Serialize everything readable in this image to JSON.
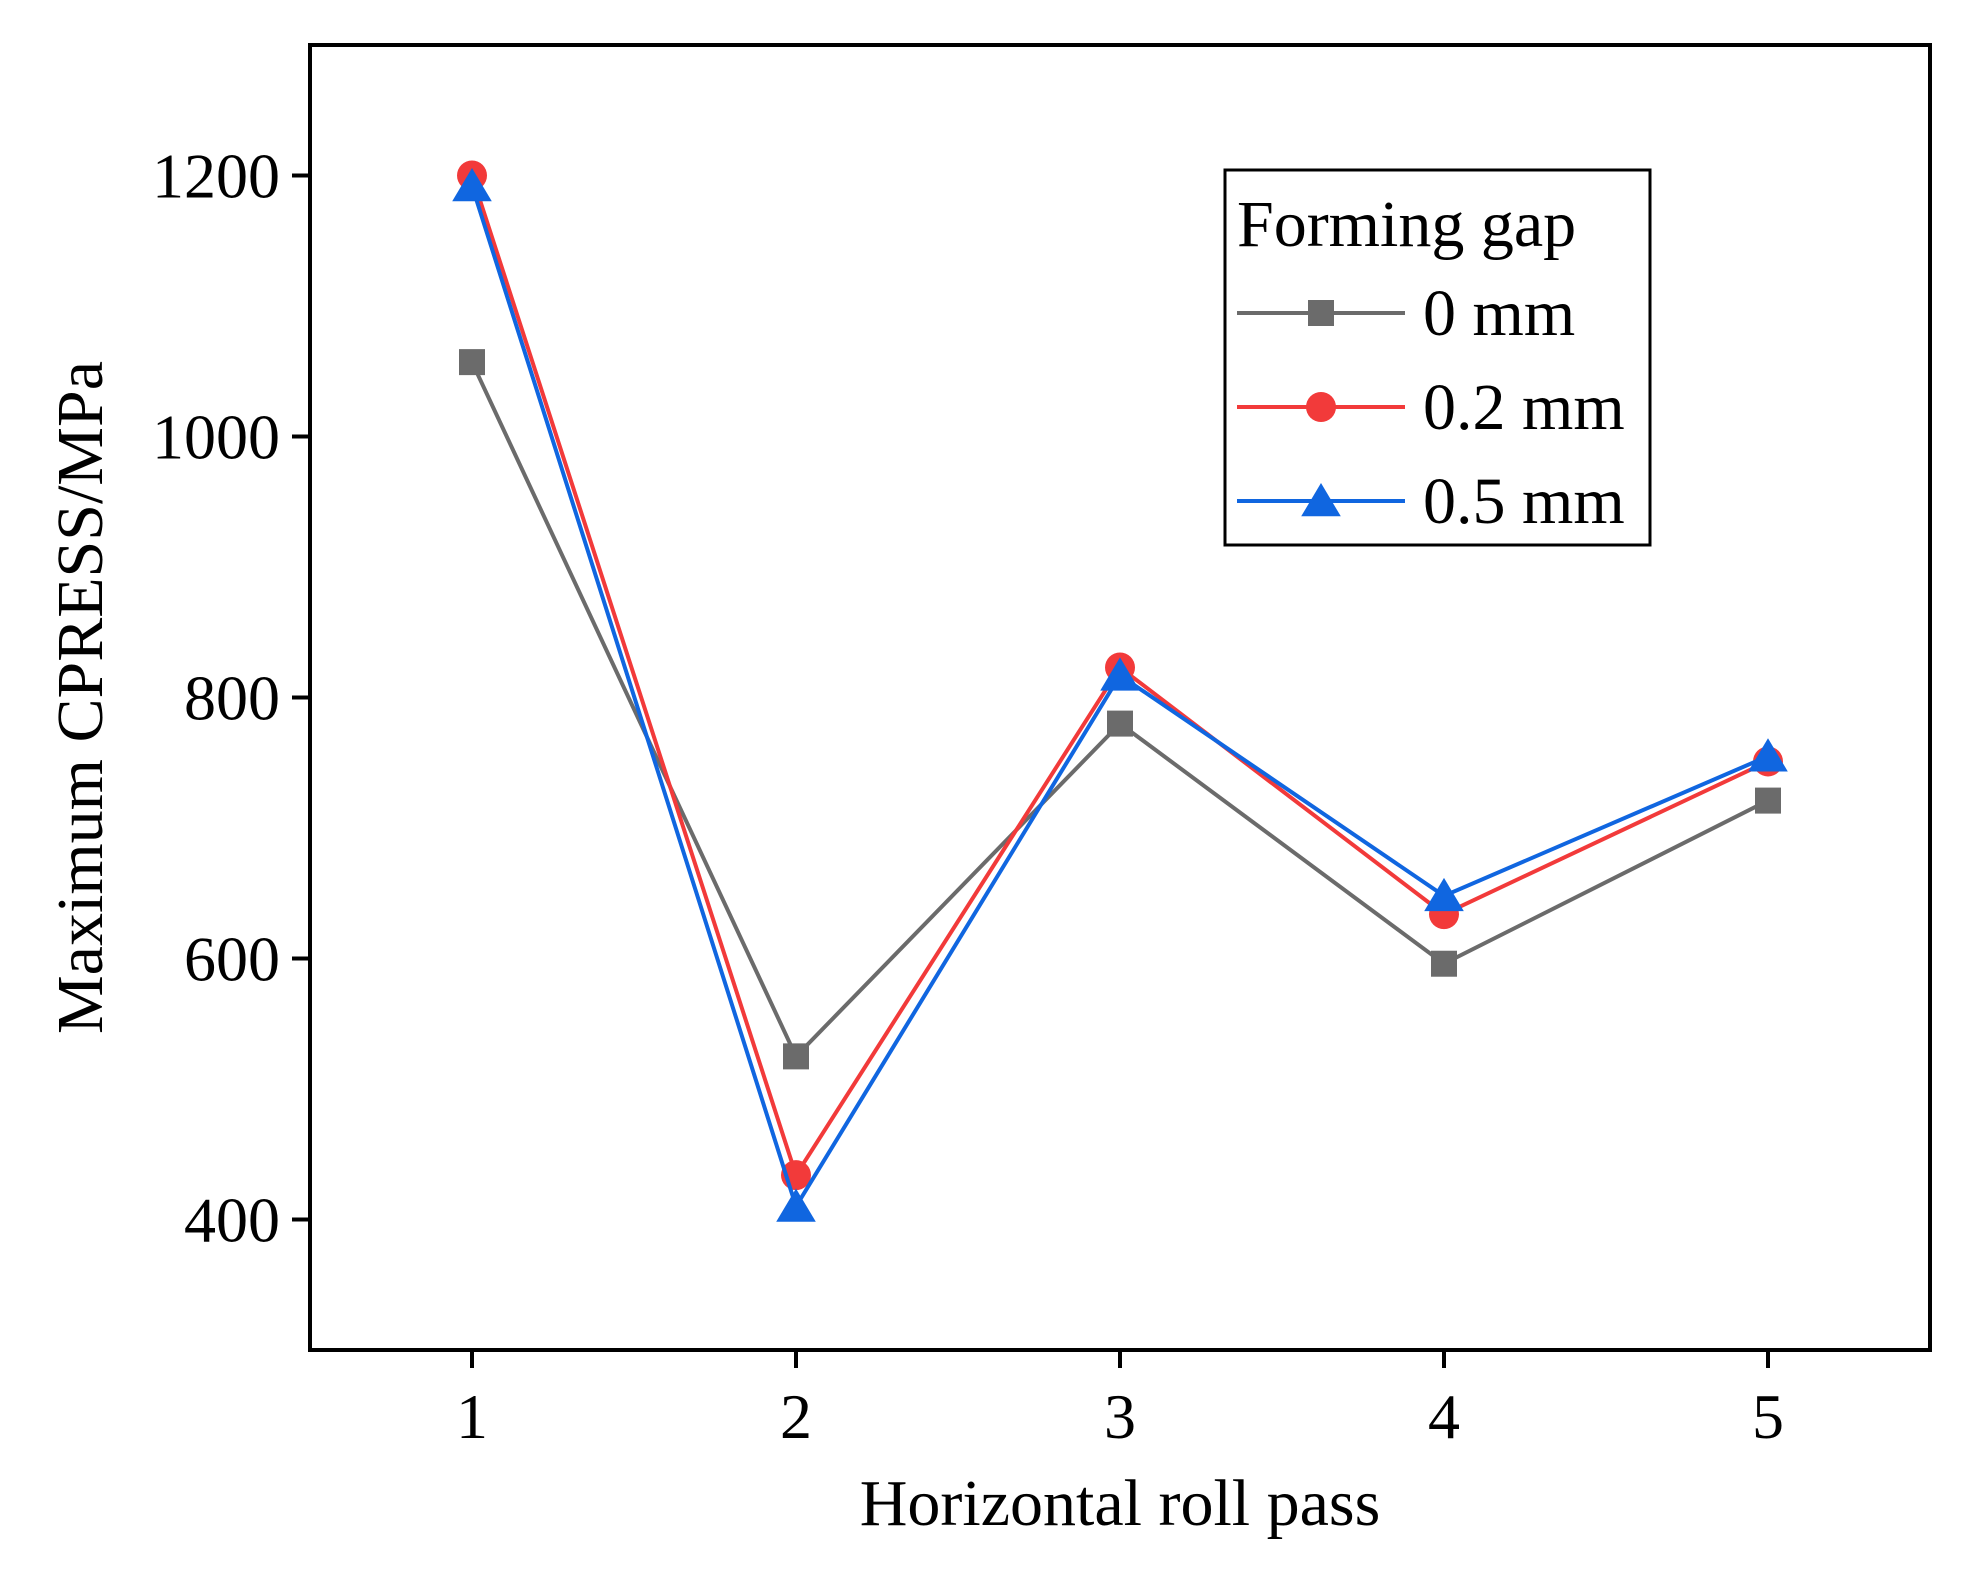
{
  "chart_data": {
    "type": "line",
    "title": "",
    "xlabel": "Horizontal roll pass",
    "ylabel": "Maximum CPRESS/MPa",
    "x": [
      1,
      2,
      3,
      4,
      5
    ],
    "xlim": [
      0.5,
      5.5
    ],
    "ylim": [
      300,
      1300
    ],
    "xticks": [
      1,
      2,
      3,
      4,
      5
    ],
    "yticks": [
      400,
      600,
      800,
      1000,
      1200
    ],
    "legend": {
      "title": "Forming gap",
      "position": "top-right"
    },
    "series": [
      {
        "name": "0 mm",
        "marker": "square",
        "color": "#6b6b6b",
        "values": [
          1057,
          525,
          780,
          596,
          721
        ]
      },
      {
        "name": "0.2 mm",
        "marker": "circle",
        "color": "#f23a3a",
        "values": [
          1200,
          434,
          823,
          634,
          751
        ]
      },
      {
        "name": "0.5 mm",
        "marker": "triangle",
        "color": "#1066e0",
        "values": [
          1192,
          410,
          817,
          648,
          755
        ]
      }
    ]
  }
}
